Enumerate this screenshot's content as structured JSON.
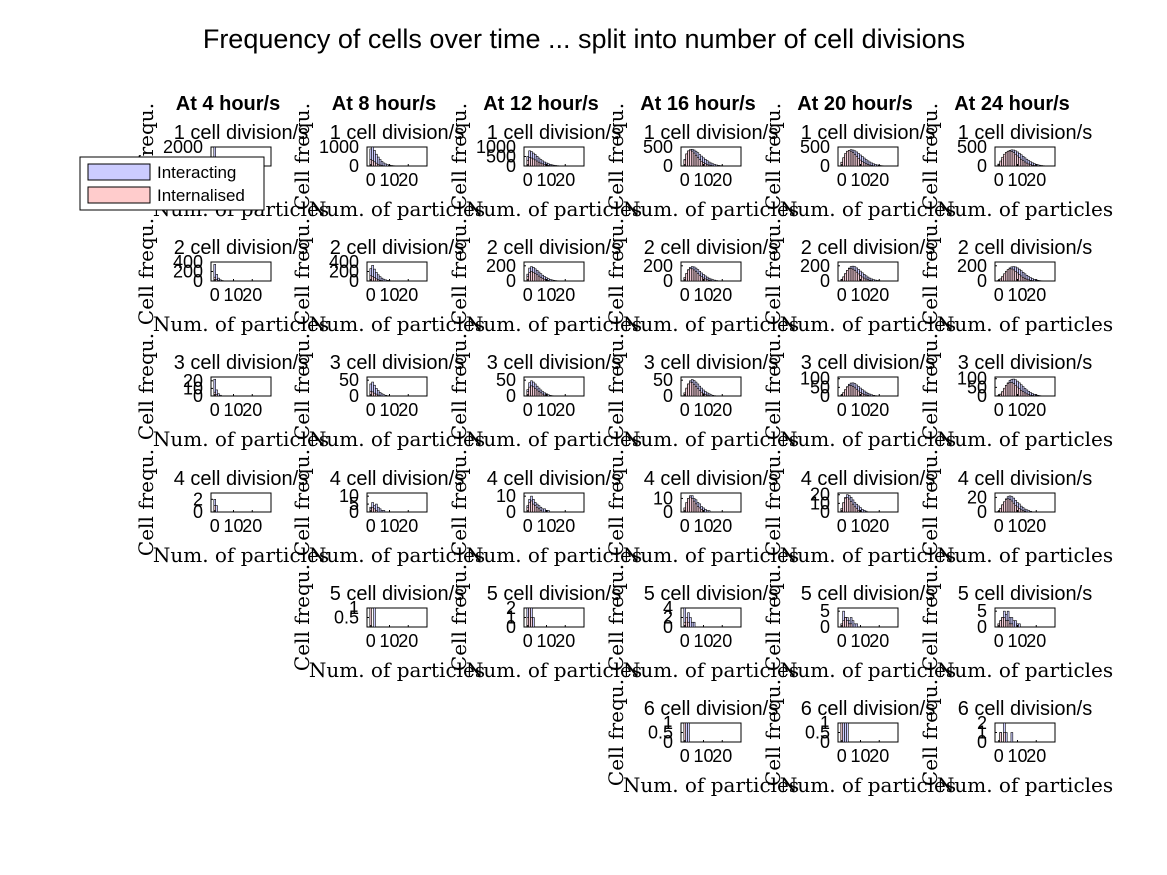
{
  "figure": {
    "title": "Frequency of cells over time ... split into number of cell divisions"
  },
  "chart_data": {
    "type": "bar",
    "layout": "grid of small-multiple histograms, rows = number of cell divisions, columns = time point",
    "column_titles": [
      "At 4 hour/s",
      "At 8 hour/s",
      "At 12 hour/s",
      "At 16 hour/s",
      "At 20 hour/s",
      "At 24 hour/s"
    ],
    "row_titles": [
      "1 cell division/s",
      "2 cell division/s",
      "3 cell division/s",
      "4 cell division/s",
      "5 cell division/s",
      "6 cell division/s"
    ],
    "xlabel": "Num. of particles",
    "ylabel": "Cell frequ.",
    "xlim": [
      -2,
      30
    ],
    "xticks": [
      0,
      10,
      20
    ],
    "legend": {
      "placement": "left of first row",
      "entries": [
        {
          "name": "Interacting",
          "color": "#ccccff"
        },
        {
          "name": "Internalised",
          "color": "#ffcccc"
        }
      ]
    },
    "series_colors": {
      "interacting": "#ccccff",
      "internalised": "#ffcccc",
      "edge": "#000000"
    },
    "panels": [
      {
        "row": 0,
        "col": 0,
        "ymax": 2000,
        "yticks": [
          0,
          2000
        ],
        "interacting": [
          2100,
          850,
          380,
          160,
          70,
          30,
          12,
          5,
          2
        ],
        "internalised": [
          300,
          120,
          40,
          15,
          5
        ]
      },
      {
        "row": 0,
        "col": 1,
        "ymax": 1000,
        "yticks": [
          0,
          1000
        ],
        "interacting": [
          900,
          1050,
          820,
          620,
          470,
          340,
          240,
          160,
          110,
          70,
          45,
          28,
          17,
          10,
          6,
          3
        ],
        "internalised": [
          350,
          300,
          220,
          150,
          90,
          50,
          25,
          10
        ]
      },
      {
        "row": 0,
        "col": 2,
        "ymax": 1000,
        "yticks": [
          0,
          500,
          1000
        ],
        "interacting": [
          500,
          800,
          760,
          680,
          600,
          510,
          420,
          340,
          270,
          210,
          160,
          120,
          85,
          60,
          40,
          26,
          16,
          9,
          5,
          3
        ],
        "internalised": [
          300,
          450,
          420,
          370,
          320,
          260,
          200,
          150,
          110,
          75,
          50,
          30,
          18,
          9
        ]
      },
      {
        "row": 0,
        "col": 3,
        "ymax": 500,
        "yticks": [
          0,
          500
        ],
        "interacting": [
          170,
          300,
          390,
          430,
          440,
          420,
          390,
          350,
          300,
          260,
          215,
          175,
          140,
          105,
          80,
          58,
          40,
          27,
          17,
          10,
          6,
          3
        ],
        "internalised": [
          160,
          320,
          400,
          420,
          390,
          340,
          280,
          220,
          170,
          125,
          90,
          60,
          40,
          25,
          14,
          7
        ]
      },
      {
        "row": 0,
        "col": 4,
        "ymax": 500,
        "yticks": [
          0,
          500
        ],
        "interacting": [
          90,
          190,
          290,
          370,
          410,
          430,
          420,
          400,
          370,
          330,
          290,
          250,
          210,
          170,
          135,
          105,
          80,
          58,
          40,
          27,
          17,
          10,
          6,
          3
        ],
        "internalised": [
          100,
          220,
          330,
          390,
          410,
          390,
          350,
          300,
          250,
          200,
          155,
          115,
          85,
          60,
          40,
          25,
          14,
          7
        ]
      },
      {
        "row": 0,
        "col": 5,
        "ymax": 500,
        "yticks": [
          0,
          500
        ],
        "interacting": [
          40,
          100,
          180,
          260,
          330,
          380,
          410,
          425,
          420,
          400,
          370,
          335,
          295,
          255,
          215,
          178,
          143,
          112,
          85,
          63,
          45,
          31,
          20,
          12,
          7,
          4
        ],
        "internalised": [
          50,
          130,
          230,
          310,
          360,
          390,
          395,
          380,
          350,
          310,
          265,
          220,
          178,
          140,
          105,
          76,
          52,
          34,
          21,
          12,
          6
        ]
      },
      {
        "row": 1,
        "col": 0,
        "ymax": 400,
        "yticks": [
          0,
          200,
          400
        ],
        "interacting": [
          350,
          140,
          60,
          25,
          10,
          4
        ],
        "internalised": [
          80,
          30,
          10,
          3
        ]
      },
      {
        "row": 1,
        "col": 1,
        "ymax": 400,
        "yticks": [
          0,
          200,
          400
        ],
        "interacting": [
          260,
          330,
          250,
          180,
          130,
          90,
          60,
          38,
          23,
          13,
          7,
          4
        ],
        "internalised": [
          110,
          95,
          70,
          45,
          27,
          15,
          7
        ]
      },
      {
        "row": 1,
        "col": 2,
        "ymax": 250,
        "yticks": [
          0,
          200
        ],
        "interacting": [
          90,
          170,
          190,
          180,
          160,
          140,
          118,
          96,
          76,
          58,
          43,
          31,
          21,
          14,
          9,
          5,
          3
        ],
        "internalised": [
          60,
          110,
          125,
          115,
          100,
          82,
          64,
          48,
          34,
          23,
          14,
          8
        ]
      },
      {
        "row": 1,
        "col": 3,
        "ymax": 250,
        "yticks": [
          0,
          200
        ],
        "interacting": [
          40,
          95,
          150,
          180,
          190,
          185,
          170,
          150,
          128,
          106,
          86,
          67,
          51,
          37,
          26,
          17,
          11,
          6,
          3
        ],
        "internalised": [
          45,
          100,
          145,
          165,
          160,
          145,
          122,
          98,
          76,
          56,
          40,
          27,
          17,
          10,
          5
        ]
      },
      {
        "row": 1,
        "col": 4,
        "ymax": 250,
        "yticks": [
          0,
          200
        ],
        "interacting": [
          15,
          45,
          90,
          135,
          170,
          190,
          195,
          188,
          172,
          152,
          130,
          108,
          87,
          68,
          52,
          38,
          27,
          18,
          12,
          7,
          4
        ],
        "internalised": [
          20,
          55,
          100,
          140,
          160,
          165,
          156,
          138,
          116,
          93,
          72,
          53,
          38,
          26,
          16,
          9,
          5
        ]
      },
      {
        "row": 1,
        "col": 5,
        "ymax": 250,
        "yticks": [
          0,
          200
        ],
        "interacting": [
          6,
          20,
          45,
          80,
          115,
          148,
          172,
          186,
          190,
          185,
          172,
          155,
          135,
          114,
          94,
          75,
          58,
          44,
          32,
          22,
          15,
          9,
          5,
          3
        ],
        "internalised": [
          8,
          28,
          60,
          95,
          128,
          150,
          160,
          158,
          146,
          128,
          107,
          86,
          66,
          49,
          35,
          24,
          15,
          9,
          5
        ]
      },
      {
        "row": 2,
        "col": 0,
        "ymax": 25,
        "yticks": [
          0,
          10,
          20
        ],
        "interacting": [
          22,
          8,
          3,
          1
        ],
        "internalised": [
          5,
          2
        ]
      },
      {
        "row": 2,
        "col": 1,
        "ymax": 60,
        "yticks": [
          0,
          50
        ],
        "interacting": [
          38,
          44,
          34,
          24,
          17,
          11,
          7,
          4,
          2,
          1
        ],
        "internalised": [
          15,
          13,
          9,
          6,
          3,
          1
        ]
      },
      {
        "row": 2,
        "col": 2,
        "ymax": 60,
        "yticks": [
          0,
          50
        ],
        "interacting": [
          20,
          42,
          48,
          44,
          38,
          31,
          25,
          19,
          14,
          10,
          7,
          4,
          2,
          1
        ],
        "internalised": [
          14,
          28,
          32,
          29,
          24,
          19,
          14,
          10,
          6,
          3,
          1
        ]
      },
      {
        "row": 2,
        "col": 3,
        "ymax": 60,
        "yticks": [
          0,
          50
        ],
        "interacting": [
          8,
          22,
          38,
          48,
          52,
          49,
          44,
          38,
          31,
          25,
          19,
          14,
          10,
          7,
          4,
          2,
          1
        ],
        "internalised": [
          10,
          25,
          38,
          44,
          42,
          37,
          30,
          23,
          17,
          12,
          8,
          5,
          3,
          1
        ]
      },
      {
        "row": 2,
        "col": 4,
        "ymax": 110,
        "yticks": [
          0,
          50,
          100
        ],
        "interacting": [
          5,
          16,
          34,
          54,
          68,
          75,
          76,
          72,
          64,
          55,
          46,
          37,
          29,
          22,
          16,
          11,
          7,
          4,
          2,
          1
        ],
        "internalised": [
          6,
          20,
          38,
          52,
          60,
          60,
          55,
          47,
          38,
          29,
          21,
          15,
          10,
          6,
          3,
          1
        ]
      },
      {
        "row": 2,
        "col": 5,
        "ymax": 110,
        "yticks": [
          0,
          50,
          100
        ],
        "interacting": [
          2,
          8,
          20,
          38,
          58,
          76,
          90,
          97,
          98,
          94,
          86,
          76,
          65,
          54,
          44,
          35,
          27,
          20,
          14,
          10,
          6,
          4,
          2,
          1
        ],
        "internalised": [
          3,
          11,
          26,
          45,
          62,
          73,
          78,
          77,
          71,
          62,
          52,
          42,
          33,
          25,
          18,
          12,
          8,
          5,
          3,
          1
        ]
      },
      {
        "row": 3,
        "col": 0,
        "ymax": 3,
        "yticks": [
          0,
          2
        ],
        "interacting": [
          2,
          1
        ],
        "internalised": [
          1
        ]
      },
      {
        "row": 3,
        "col": 1,
        "ymax": 12,
        "yticks": [
          0,
          5,
          10
        ],
        "interacting": [
          3,
          6,
          4,
          5,
          3,
          2,
          1,
          1
        ],
        "internalised": [
          2,
          3,
          2,
          1
        ]
      },
      {
        "row": 3,
        "col": 2,
        "ymax": 12,
        "yticks": [
          0,
          10
        ],
        "interacting": [
          4,
          8,
          10,
          8,
          6,
          5,
          4,
          3,
          2,
          2,
          1,
          1
        ],
        "internalised": [
          3,
          6,
          7,
          5,
          4,
          3,
          2,
          1
        ]
      },
      {
        "row": 3,
        "col": 3,
        "ymax": 14,
        "yticks": [
          0,
          10
        ],
        "interacting": [
          2,
          6,
          10,
          12,
          12,
          10,
          9,
          7,
          6,
          4,
          3,
          2,
          1,
          1
        ],
        "internalised": [
          3,
          7,
          10,
          11,
          10,
          8,
          6,
          4,
          3,
          2,
          1
        ]
      },
      {
        "row": 3,
        "col": 4,
        "ymax": 22,
        "yticks": [
          0,
          10,
          20
        ],
        "interacting": [
          3,
          10,
          17,
          20,
          19,
          17,
          14,
          11,
          9,
          7,
          5,
          3,
          2,
          1
        ],
        "internalised": [
          4,
          11,
          16,
          17,
          15,
          12,
          9,
          6,
          4,
          2,
          1
        ]
      },
      {
        "row": 3,
        "col": 5,
        "ymax": 26,
        "yticks": [
          0,
          20
        ],
        "interacting": [
          1,
          4,
          9,
          14,
          18,
          21,
          22,
          21,
          19,
          16,
          13,
          11,
          8,
          6,
          4,
          3,
          2,
          1
        ],
        "internalised": [
          1,
          5,
          10,
          14,
          17,
          18,
          17,
          15,
          12,
          9,
          7,
          5,
          3,
          2,
          1
        ]
      },
      {
        "row": 4,
        "col": 1,
        "ymax": 1,
        "yticks": [
          0.5,
          1
        ],
        "interacting": [
          1,
          0,
          1
        ],
        "internalised": [
          1
        ]
      },
      {
        "row": 4,
        "col": 2,
        "ymax": 2,
        "yticks": [
          0,
          1,
          2
        ],
        "interacting": [
          2,
          2,
          2,
          1
        ],
        "internalised": [
          1,
          2,
          1
        ]
      },
      {
        "row": 4,
        "col": 3,
        "ymax": 4,
        "yticks": [
          0,
          2,
          4
        ],
        "interacting": [
          4,
          1,
          3,
          2,
          1,
          1
        ],
        "internalised": [
          1,
          2,
          1
        ]
      },
      {
        "row": 4,
        "col": 4,
        "ymax": 6,
        "yticks": [
          0,
          5
        ],
        "interacting": [
          1,
          5,
          3,
          3,
          2,
          3,
          2,
          1,
          1
        ],
        "internalised": [
          1,
          2,
          3,
          2,
          1,
          1
        ]
      },
      {
        "row": 4,
        "col": 5,
        "ymax": 6,
        "yticks": [
          0,
          5
        ],
        "interacting": [
          1,
          2,
          3,
          5,
          4,
          5,
          3,
          3,
          2,
          2,
          1,
          1
        ],
        "internalised": [
          1,
          2,
          3,
          3,
          2,
          2,
          1,
          1
        ]
      },
      {
        "row": 5,
        "col": 3,
        "ymax": 1,
        "yticks": [
          0,
          0.5,
          1
        ],
        "interacting": [
          1,
          1,
          1
        ],
        "internalised": [
          1
        ]
      },
      {
        "row": 5,
        "col": 4,
        "ymax": 1,
        "yticks": [
          0,
          0.5,
          1
        ],
        "interacting": [
          1,
          1,
          1,
          1
        ],
        "internalised": [
          1
        ]
      },
      {
        "row": 5,
        "col": 5,
        "ymax": 2,
        "yticks": [
          0,
          1,
          2
        ],
        "interacting": [
          0,
          1,
          0,
          2,
          1,
          0,
          0,
          1
        ],
        "internalised": [
          0,
          1,
          0,
          1
        ]
      }
    ]
  }
}
